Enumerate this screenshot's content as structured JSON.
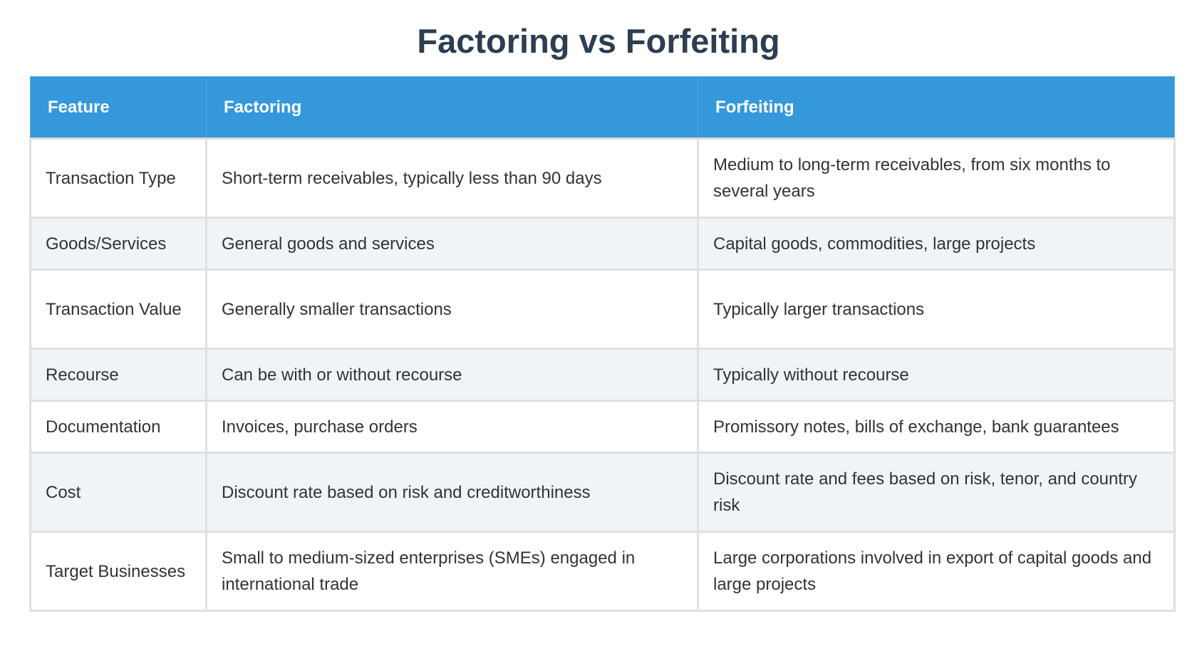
{
  "title": "Factoring vs Forfeiting",
  "colors": {
    "header_bg": "#3498db",
    "title": "#2c3e50",
    "alt_row": "#f0f4f9"
  },
  "headers": [
    "Feature",
    "Factoring",
    "Forfeiting"
  ],
  "rows": [
    [
      "Transaction Type",
      "Short-term receivables, typically less than 90 days",
      "Medium to long-term receivables, from six months to several years"
    ],
    [
      "Goods/Services",
      "General goods and services",
      "Capital goods, commodities, large projects"
    ],
    [
      "Transaction Value",
      "Generally smaller transactions",
      "Typically larger transactions"
    ],
    [
      "Recourse",
      "Can be with or without recourse",
      "Typically without recourse"
    ],
    [
      "Documentation",
      "Invoices, purchase orders",
      "Promissory notes, bills of exchange, bank guarantees"
    ],
    [
      "Cost",
      "Discount rate based on risk and creditworthiness",
      "Discount rate and fees based on risk, tenor, and country risk"
    ],
    [
      "Target Businesses",
      "Small to medium-sized enterprises (SMEs) engaged in international trade",
      "Large corporations involved in export of capital goods and large projects"
    ]
  ]
}
